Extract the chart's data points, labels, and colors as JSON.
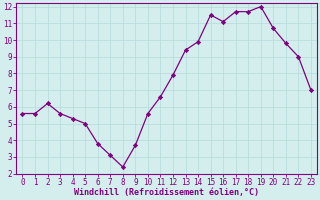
{
  "x": [
    0,
    1,
    2,
    3,
    4,
    5,
    6,
    7,
    8,
    9,
    10,
    11,
    12,
    13,
    14,
    15,
    16,
    17,
    18,
    19,
    20,
    21,
    22,
    23
  ],
  "y": [
    5.6,
    5.6,
    6.2,
    5.6,
    5.3,
    5.0,
    3.8,
    3.1,
    2.4,
    3.7,
    5.6,
    6.6,
    7.9,
    9.4,
    9.9,
    11.5,
    11.1,
    11.7,
    11.7,
    12.0,
    10.7,
    9.8,
    9.0,
    7.0
  ],
  "line_color": "#800080",
  "marker": "D",
  "marker_size": 2.2,
  "xlabel": "Windchill (Refroidissement éolien,°C)",
  "ylim": [
    2,
    12
  ],
  "xlim": [
    -0.5,
    23.5
  ],
  "yticks": [
    2,
    3,
    4,
    5,
    6,
    7,
    8,
    9,
    10,
    11,
    12
  ],
  "xticks": [
    0,
    1,
    2,
    3,
    4,
    5,
    6,
    7,
    8,
    9,
    10,
    11,
    12,
    13,
    14,
    15,
    16,
    17,
    18,
    19,
    20,
    21,
    22,
    23
  ],
  "bg_color": "#d4eeee",
  "grid_color": "#b8dede",
  "axis_color": "#800080",
  "tick_color": "#800080",
  "xlabel_color": "#800080",
  "xlabel_fontsize": 6.0,
  "tick_fontsize": 5.5,
  "linewidth": 0.9
}
